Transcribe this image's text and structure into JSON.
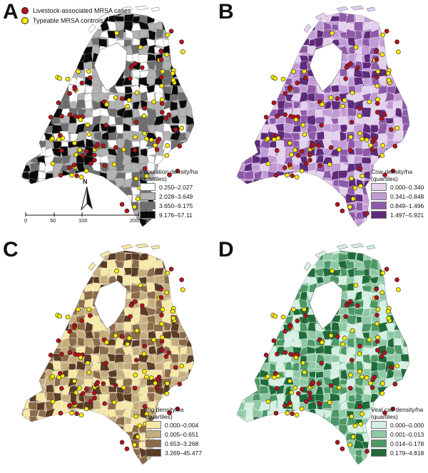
{
  "points_legend": {
    "case_label": "Livestock-associated MRSA cases",
    "control_label": "Typeable MRSA controls",
    "case_color": "#b5121b",
    "control_color": "#ffee00"
  },
  "panels": {
    "a": {
      "letter": "A",
      "legend_title_1": "Population density/ha",
      "legend_title_2": "(quartiles)",
      "classes": [
        "0.250–2.027",
        "2.028–3.649",
        "3.650–9.175",
        "9.176–57.11"
      ],
      "colors": [
        "#ffffff",
        "#b3b3b3",
        "#6e6e6e",
        "#0a0a0a"
      ]
    },
    "b": {
      "letter": "B",
      "legend_title_1": "Cow density/ha",
      "legend_title_2": "(quartiles)",
      "classes": [
        "0.000–0.340",
        "0.341–0.848",
        "0.849–1.496",
        "1.497–5.921"
      ],
      "colors": [
        "#e3d0ec",
        "#c09bd4",
        "#8e5aa8",
        "#5e2a7a"
      ]
    },
    "c": {
      "letter": "C",
      "legend_title_1": "Pig density/ha",
      "legend_title_2": "(quartiles)",
      "classes": [
        "0.000–0.004",
        "0.005–0.651",
        "0.653–3.268",
        "3.269–45.477"
      ],
      "colors": [
        "#f6e8a6",
        "#c4ad7d",
        "#8c6b49",
        "#5a3b24"
      ]
    },
    "d": {
      "letter": "D",
      "legend_title_1": "Veal calf density/ha",
      "legend_title_2": "(quartiles)",
      "classes": [
        "0.000–0.000",
        "0.001–0.013",
        "0.014–0.178",
        "0.179–4.818"
      ],
      "colors": [
        "#d5efe3",
        "#8fc8a6",
        "#4d9867",
        "#1f6b3a"
      ]
    }
  },
  "north_arrow_label": "N",
  "scale": {
    "ticks": [
      "0",
      "50",
      "100",
      "200 km"
    ]
  }
}
